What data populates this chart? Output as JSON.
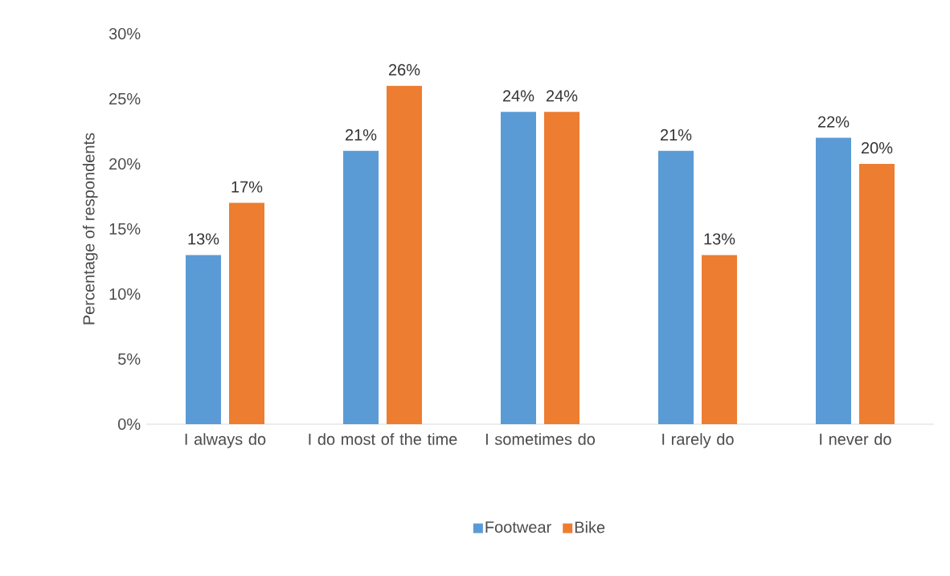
{
  "chart_data": {
    "type": "bar",
    "ylabel": "Percentage of respondents",
    "categories": [
      "I always do",
      "I do most of the time",
      "I sometimes do",
      "I rarely do",
      "I never do"
    ],
    "series": [
      {
        "name": "Footwear",
        "color": "#5b9bd5",
        "values": [
          13,
          21,
          24,
          21,
          22
        ],
        "value_labels": [
          "13%",
          "21%",
          "24%",
          "21%",
          "22%"
        ]
      },
      {
        "name": "Bike",
        "color": "#ed7d31",
        "values": [
          17,
          26,
          24,
          13,
          20
        ],
        "value_labels": [
          "17%",
          "26%",
          "24%",
          "13%",
          "20%"
        ]
      }
    ],
    "ylim": [
      0,
      30
    ],
    "yticks": [
      {
        "value": 0,
        "label": "0%"
      },
      {
        "value": 5,
        "label": "5%"
      },
      {
        "value": 10,
        "label": "10%"
      },
      {
        "value": 15,
        "label": "15%"
      },
      {
        "value": 20,
        "label": "20%"
      },
      {
        "value": 25,
        "label": "25%"
      },
      {
        "value": 30,
        "label": "30%"
      }
    ],
    "legend": "bottom"
  }
}
